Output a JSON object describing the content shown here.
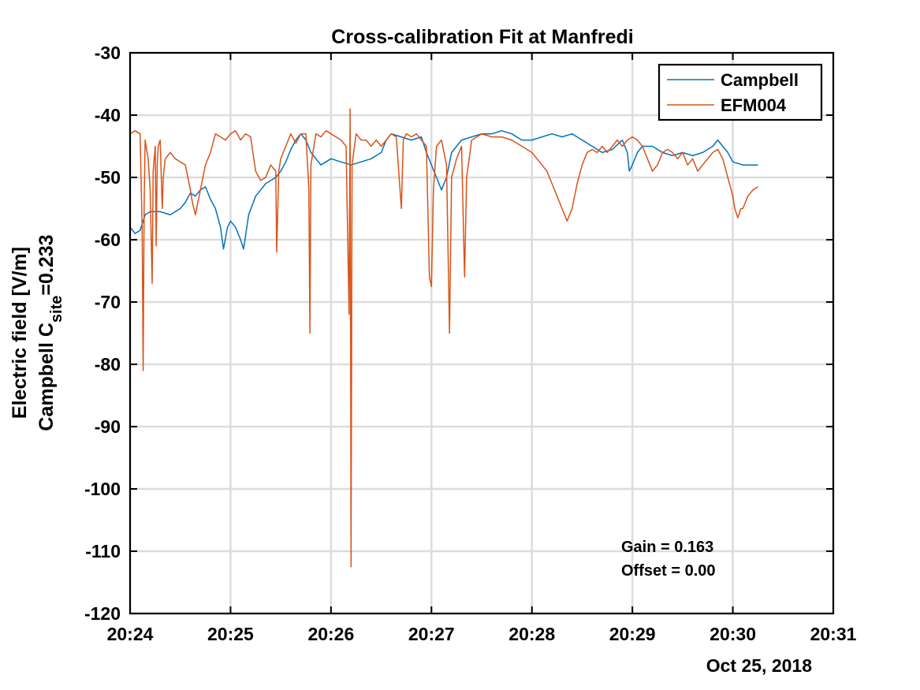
{
  "chart_data": {
    "type": "line",
    "title": "Cross-calibration Fit at Manfredi",
    "ylabel_line1": "Electric field [V/m]",
    "ylabel_line2_prefix": "Campbell C",
    "ylabel_line2_subscript": "site",
    "ylabel_line2_suffix": "=0.233",
    "xlabel_date": "Oct 25, 2018",
    "x_unit": "minutes past 20:24",
    "xlim": [
      0,
      7
    ],
    "ylim": [
      -120,
      -30
    ],
    "x_ticks": [
      0,
      1,
      2,
      3,
      4,
      5,
      6,
      7
    ],
    "x_tick_labels": [
      "20:24",
      "20:25",
      "20:26",
      "20:27",
      "20:28",
      "20:29",
      "20:30",
      "20:31"
    ],
    "y_ticks": [
      -120,
      -110,
      -100,
      -90,
      -80,
      -70,
      -60,
      -50,
      -40,
      -30
    ],
    "grid": true,
    "legend_position": "top-right",
    "annotations": [
      "Gain = 0.163",
      "Offset = 0.00"
    ],
    "series": [
      {
        "name": "Campbell",
        "color": "#0072BD",
        "points": [
          [
            0.0,
            -58
          ],
          [
            0.05,
            -59
          ],
          [
            0.1,
            -58.5
          ],
          [
            0.15,
            -56
          ],
          [
            0.2,
            -55.5
          ],
          [
            0.3,
            -55.5
          ],
          [
            0.4,
            -56
          ],
          [
            0.5,
            -55
          ],
          [
            0.55,
            -54
          ],
          [
            0.6,
            -52.5
          ],
          [
            0.65,
            -53
          ],
          [
            0.7,
            -52
          ],
          [
            0.75,
            -51.5
          ],
          [
            0.8,
            -53.5
          ],
          [
            0.85,
            -55
          ],
          [
            0.9,
            -58
          ],
          [
            0.93,
            -61.5
          ],
          [
            0.97,
            -58
          ],
          [
            1.0,
            -57
          ],
          [
            1.05,
            -58
          ],
          [
            1.1,
            -60
          ],
          [
            1.13,
            -61.5
          ],
          [
            1.18,
            -56
          ],
          [
            1.25,
            -53
          ],
          [
            1.3,
            -52
          ],
          [
            1.35,
            -51
          ],
          [
            1.45,
            -50
          ],
          [
            1.5,
            -49
          ],
          [
            1.55,
            -47.5
          ],
          [
            1.6,
            -45.5
          ],
          [
            1.65,
            -44
          ],
          [
            1.7,
            -43
          ],
          [
            1.75,
            -44
          ],
          [
            1.8,
            -46
          ],
          [
            1.9,
            -48
          ],
          [
            2.0,
            -47
          ],
          [
            2.1,
            -47.5
          ],
          [
            2.2,
            -48
          ],
          [
            2.3,
            -47.5
          ],
          [
            2.4,
            -47
          ],
          [
            2.5,
            -46
          ],
          [
            2.55,
            -44
          ],
          [
            2.6,
            -43
          ],
          [
            2.7,
            -43.5
          ],
          [
            2.8,
            -44
          ],
          [
            2.9,
            -43.5
          ],
          [
            2.95,
            -46
          ],
          [
            3.0,
            -48
          ],
          [
            3.05,
            -50
          ],
          [
            3.1,
            -52
          ],
          [
            3.15,
            -50
          ],
          [
            3.2,
            -46
          ],
          [
            3.3,
            -44
          ],
          [
            3.4,
            -43.5
          ],
          [
            3.5,
            -43
          ],
          [
            3.6,
            -43
          ],
          [
            3.7,
            -42.5
          ],
          [
            3.8,
            -43
          ],
          [
            3.9,
            -44
          ],
          [
            4.0,
            -44
          ],
          [
            4.1,
            -43.5
          ],
          [
            4.2,
            -43
          ],
          [
            4.3,
            -43.5
          ],
          [
            4.4,
            -43
          ],
          [
            4.5,
            -44
          ],
          [
            4.6,
            -45
          ],
          [
            4.7,
            -46
          ],
          [
            4.8,
            -45.5
          ],
          [
            4.9,
            -44
          ],
          [
            4.95,
            -46
          ],
          [
            4.97,
            -49
          ],
          [
            5.0,
            -48
          ],
          [
            5.05,
            -46
          ],
          [
            5.1,
            -45
          ],
          [
            5.2,
            -45
          ],
          [
            5.3,
            -46
          ],
          [
            5.4,
            -46.5
          ],
          [
            5.5,
            -46
          ],
          [
            5.6,
            -46.5
          ],
          [
            5.7,
            -46
          ],
          [
            5.8,
            -45
          ],
          [
            5.85,
            -44
          ],
          [
            5.9,
            -45
          ],
          [
            5.95,
            -46
          ],
          [
            6.0,
            -47.5
          ],
          [
            6.1,
            -48
          ],
          [
            6.2,
            -48
          ],
          [
            6.25,
            -48
          ]
        ]
      },
      {
        "name": "EFM004",
        "color": "#D95319",
        "points": [
          [
            0.0,
            -43
          ],
          [
            0.05,
            -42.5
          ],
          [
            0.1,
            -43
          ],
          [
            0.12,
            -58
          ],
          [
            0.13,
            -81
          ],
          [
            0.14,
            -55
          ],
          [
            0.15,
            -44
          ],
          [
            0.18,
            -47
          ],
          [
            0.2,
            -52
          ],
          [
            0.22,
            -67
          ],
          [
            0.23,
            -49
          ],
          [
            0.25,
            -45
          ],
          [
            0.26,
            -61
          ],
          [
            0.27,
            -48
          ],
          [
            0.28,
            -45
          ],
          [
            0.3,
            -44
          ],
          [
            0.32,
            -55
          ],
          [
            0.33,
            -50
          ],
          [
            0.35,
            -47
          ],
          [
            0.4,
            -46
          ],
          [
            0.45,
            -47
          ],
          [
            0.5,
            -47.5
          ],
          [
            0.55,
            -48
          ],
          [
            0.6,
            -52
          ],
          [
            0.62,
            -54
          ],
          [
            0.65,
            -56
          ],
          [
            0.7,
            -52
          ],
          [
            0.75,
            -48
          ],
          [
            0.8,
            -46
          ],
          [
            0.85,
            -43
          ],
          [
            0.9,
            -43.5
          ],
          [
            0.95,
            -44
          ],
          [
            1.0,
            -43
          ],
          [
            1.05,
            -42.5
          ],
          [
            1.1,
            -44
          ],
          [
            1.15,
            -43
          ],
          [
            1.2,
            -43.5
          ],
          [
            1.25,
            -49
          ],
          [
            1.3,
            -50.5
          ],
          [
            1.35,
            -50
          ],
          [
            1.4,
            -48
          ],
          [
            1.45,
            -49
          ],
          [
            1.46,
            -62
          ],
          [
            1.48,
            -49
          ],
          [
            1.5,
            -47
          ],
          [
            1.55,
            -45
          ],
          [
            1.6,
            -43
          ],
          [
            1.65,
            -44.5
          ],
          [
            1.7,
            -43
          ],
          [
            1.75,
            -43
          ],
          [
            1.78,
            -52
          ],
          [
            1.79,
            -75
          ],
          [
            1.8,
            -48
          ],
          [
            1.85,
            -43
          ],
          [
            1.9,
            -43.5
          ],
          [
            1.95,
            -42.5
          ],
          [
            2.0,
            -43
          ],
          [
            2.05,
            -43.5
          ],
          [
            2.1,
            -44
          ],
          [
            2.15,
            -45
          ],
          [
            2.18,
            -72
          ],
          [
            2.19,
            -39
          ],
          [
            2.2,
            -112.5
          ],
          [
            2.21,
            -48
          ],
          [
            2.25,
            -43
          ],
          [
            2.3,
            -44
          ],
          [
            2.35,
            -44
          ],
          [
            2.4,
            -45
          ],
          [
            2.45,
            -44
          ],
          [
            2.5,
            -45
          ],
          [
            2.55,
            -44
          ],
          [
            2.6,
            -43
          ],
          [
            2.65,
            -43.5
          ],
          [
            2.7,
            -55
          ],
          [
            2.72,
            -44
          ],
          [
            2.75,
            -43
          ],
          [
            2.8,
            -43.5
          ],
          [
            2.85,
            -43
          ],
          [
            2.9,
            -44
          ],
          [
            2.95,
            -45
          ],
          [
            2.98,
            -66
          ],
          [
            3.0,
            -67.5
          ],
          [
            3.02,
            -52
          ],
          [
            3.05,
            -45
          ],
          [
            3.1,
            -44
          ],
          [
            3.15,
            -48
          ],
          [
            3.18,
            -75
          ],
          [
            3.2,
            -50
          ],
          [
            3.25,
            -47
          ],
          [
            3.3,
            -45
          ],
          [
            3.33,
            -66
          ],
          [
            3.35,
            -50
          ],
          [
            3.4,
            -44
          ],
          [
            3.5,
            -43
          ],
          [
            3.6,
            -43.5
          ],
          [
            3.7,
            -43.5
          ],
          [
            3.8,
            -44
          ],
          [
            3.9,
            -45
          ],
          [
            4.0,
            -46
          ],
          [
            4.05,
            -47
          ],
          [
            4.1,
            -48
          ],
          [
            4.15,
            -49
          ],
          [
            4.2,
            -51
          ],
          [
            4.25,
            -53
          ],
          [
            4.3,
            -55
          ],
          [
            4.35,
            -57
          ],
          [
            4.4,
            -55
          ],
          [
            4.45,
            -51
          ],
          [
            4.5,
            -48
          ],
          [
            4.55,
            -46
          ],
          [
            4.6,
            -45.5
          ],
          [
            4.65,
            -46
          ],
          [
            4.7,
            -45
          ],
          [
            4.75,
            -46
          ],
          [
            4.8,
            -45
          ],
          [
            4.85,
            -44
          ],
          [
            4.9,
            -45
          ],
          [
            4.95,
            -44
          ],
          [
            5.0,
            -43.5
          ],
          [
            5.05,
            -44
          ],
          [
            5.1,
            -45
          ],
          [
            5.15,
            -47
          ],
          [
            5.2,
            -49
          ],
          [
            5.25,
            -48
          ],
          [
            5.3,
            -46
          ],
          [
            5.35,
            -45.5
          ],
          [
            5.4,
            -46
          ],
          [
            5.45,
            -47
          ],
          [
            5.5,
            -46
          ],
          [
            5.55,
            -48
          ],
          [
            5.6,
            -47
          ],
          [
            5.65,
            -49
          ],
          [
            5.7,
            -48
          ],
          [
            5.75,
            -47
          ],
          [
            5.8,
            -46
          ],
          [
            5.85,
            -45.5
          ],
          [
            5.9,
            -47
          ],
          [
            5.95,
            -50
          ],
          [
            6.0,
            -53
          ],
          [
            6.02,
            -55
          ],
          [
            6.05,
            -56.5
          ],
          [
            6.08,
            -55
          ],
          [
            6.1,
            -55
          ],
          [
            6.15,
            -53
          ],
          [
            6.2,
            -52
          ],
          [
            6.25,
            -51.5
          ]
        ]
      }
    ]
  }
}
